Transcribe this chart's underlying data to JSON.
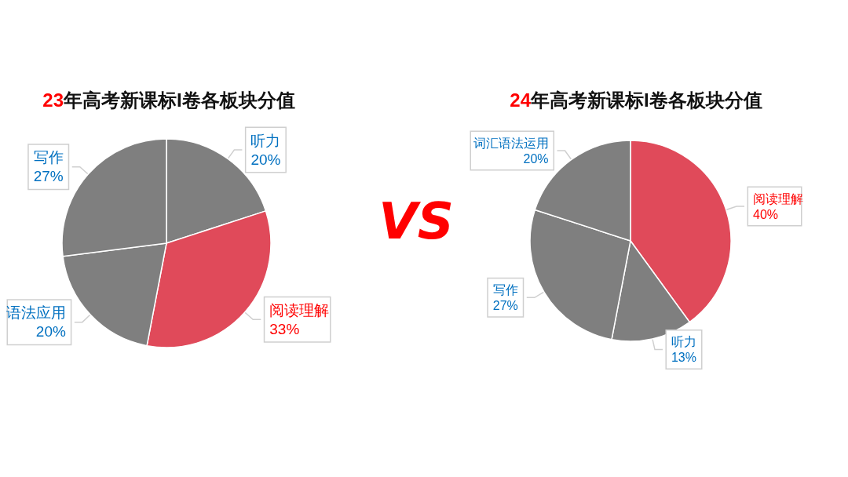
{
  "chart_data": [
    {
      "type": "pie",
      "title": "23年高考新课标I卷各板块分值",
      "categories": [
        "听力",
        "阅读理解",
        "语法应用",
        "写作"
      ],
      "values": [
        20,
        33,
        20,
        27
      ],
      "value_labels": [
        "20%",
        "33%",
        "20%",
        "27%"
      ],
      "colors": [
        "#7f7f7f",
        "#e04a5a",
        "#7f7f7f",
        "#7f7f7f"
      ]
    },
    {
      "type": "other",
      "annotations": [
        "VS"
      ]
    },
    {
      "type": "pie",
      "title": "24年高考新课标I卷各板块分值",
      "categories": [
        "阅读理解",
        "听力",
        "写作",
        "词汇语法运用"
      ],
      "values": [
        40,
        13,
        27,
        20
      ],
      "value_labels": [
        "40%",
        "13%",
        "27%",
        "20%"
      ],
      "colors": [
        "#e04a5a",
        "#7f7f7f",
        "#7f7f7f",
        "#7f7f7f"
      ]
    }
  ]
}
